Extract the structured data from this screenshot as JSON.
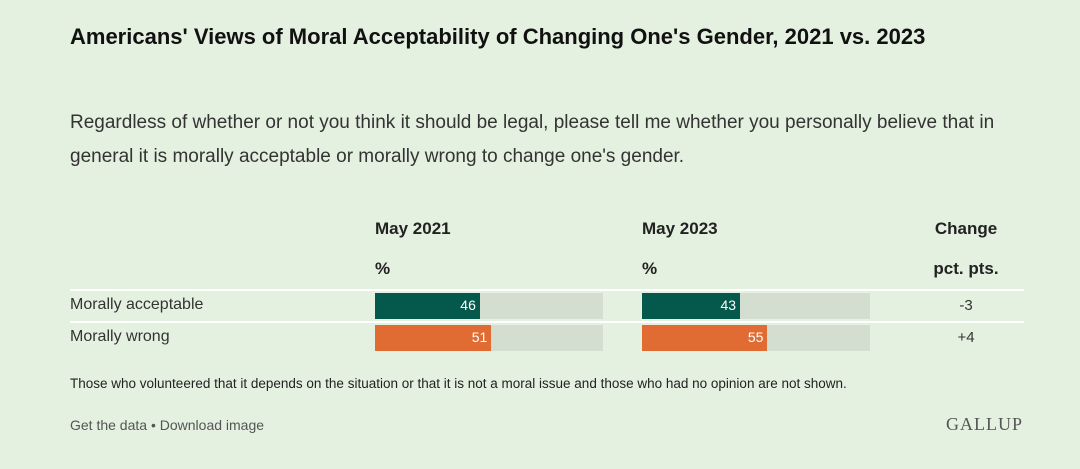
{
  "title": "Americans' Views of Moral Acceptability of Changing One's Gender, 2021 vs. 2023",
  "subtitle": "Regardless of whether or not you think it should be legal, please tell me whether you personally believe that in general it is morally acceptable or morally wrong to change one's gender.",
  "columns": {
    "col1": {
      "header": "May 2021",
      "unit": "%"
    },
    "col2": {
      "header": "May 2023",
      "unit": "%"
    },
    "col3": {
      "header": "Change",
      "unit": "pct. pts."
    }
  },
  "rows": [
    {
      "label": "Morally acceptable",
      "v2021": "46",
      "v2023": "43",
      "change": "-3"
    },
    {
      "label": "Morally wrong",
      "v2021": "51",
      "v2023": "55",
      "change": "+4"
    }
  ],
  "chart_data": {
    "type": "bar",
    "categories": [
      "Morally acceptable",
      "Morally wrong"
    ],
    "series": [
      {
        "name": "May 2021",
        "values": [
          46,
          51
        ]
      },
      {
        "name": "May 2023",
        "values": [
          43,
          55
        ]
      }
    ],
    "change": [
      -3,
      4
    ],
    "colors": {
      "Morally acceptable": "#04584c",
      "Morally wrong": "#e06c33",
      "track": "#d3ddd0"
    },
    "ylim": [
      0,
      100
    ]
  },
  "note": "Those who volunteered that it depends on the situation or that it is not a moral issue and those who had no opinion are not shown.",
  "footer": {
    "get_data": "Get the data",
    "separator": "•",
    "download": "Download image",
    "logo": "GALLUP"
  }
}
